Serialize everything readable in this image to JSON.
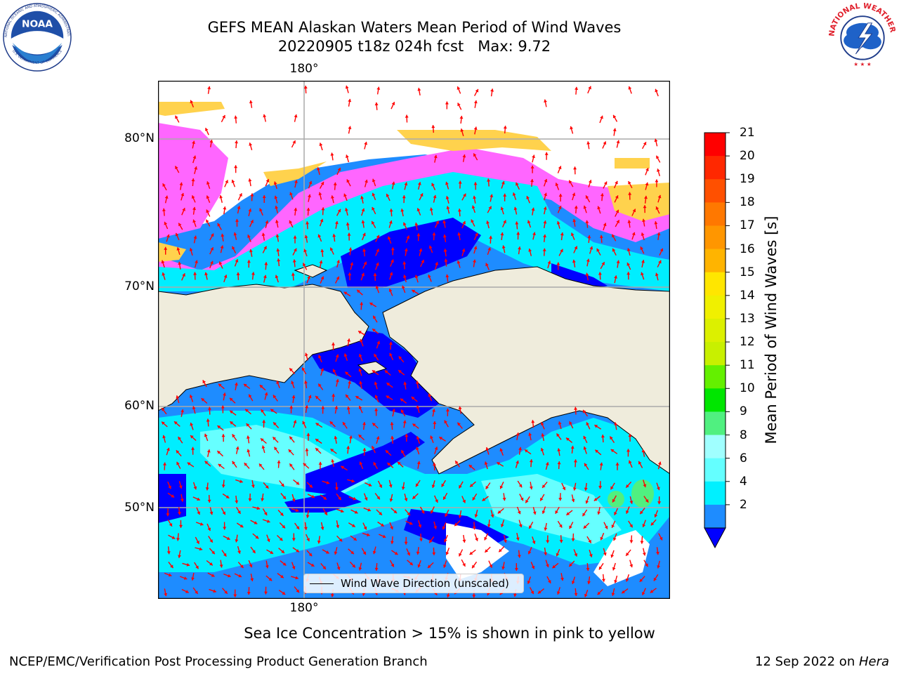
{
  "title": {
    "line1": "GEFS MEAN Alaskan Waters Mean Period of Wind Waves",
    "line2": "20220905 t18z 024h fcst   Max: 9.72"
  },
  "logos": {
    "left": "noaa-logo",
    "left_text": "NOAA",
    "left_ring_text": "NATIONAL OCEANIC AND ATMOSPHERIC ADMINISTRATION",
    "left_bottom_text": "U.S. DEPARTMENT OF COMMERCE",
    "right": "nws-logo",
    "right_ring_text": "NATIONAL WEATHER SERVICE"
  },
  "map": {
    "lon_label_top": "180°",
    "lon_label_bottom": "180°",
    "lat_labels": [
      "80°N",
      "70°N",
      "60°N",
      "50°N"
    ],
    "colors": {
      "land": "#efecdc",
      "ocean_dark": "#0000ff",
      "ocean_mid": "#1e8cff",
      "ocean_light": "#00eeff",
      "ocean_pale": "#66ffff",
      "ice_pink": "#ff66ff",
      "ice_yellow": "#ffd24d",
      "arrows": "#ff0000",
      "grid": "#aaaaaa"
    },
    "legend_label": "Wind Wave Direction (unscaled)"
  },
  "colorbar": {
    "label": "Mean Period of Wind Waves [s]",
    "ticks": [
      "21",
      "20",
      "19",
      "18",
      "17",
      "16",
      "15",
      "14",
      "13",
      "12",
      "11",
      "10",
      "9",
      "8",
      "6",
      "4",
      "2"
    ],
    "colors_top_to_bottom": [
      "#ff0000",
      "#ff2800",
      "#ff5000",
      "#ff7800",
      "#ff9600",
      "#ffb400",
      "#ffe600",
      "#f0f000",
      "#dcf000",
      "#c8f000",
      "#64f000",
      "#00e600",
      "#50f080",
      "#a0ffff",
      "#64ffff",
      "#00f0ff",
      "#1e8cff"
    ],
    "extend_color": "#0000ff"
  },
  "footer": {
    "note": "Sea Ice Concentration > 15% is shown in pink to yellow",
    "left": "NCEP/EMC/Verification Post Processing Product Generation Branch",
    "right_date": "12 Sep 2022 on ",
    "right_machine": "Hera"
  }
}
